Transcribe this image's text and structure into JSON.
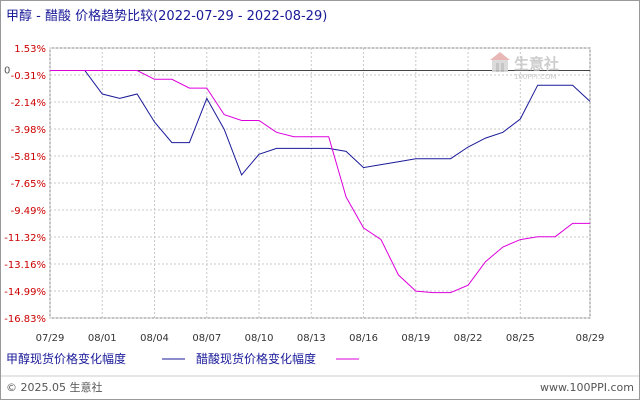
{
  "chart_data": {
    "type": "line",
    "title": "甲醇 - 醋酸 价格趋势比较(2022-07-29 - 2022-08-29)",
    "zero_label": "0",
    "ylim": [
      -16.83,
      1.53
    ],
    "yticks": [
      "1.53%",
      "-0.31%",
      "-2.14%",
      "-3.98%",
      "-5.81%",
      "-7.65%",
      "-9.49%",
      "-11.32%",
      "-13.16%",
      "-14.99%",
      "-16.83%"
    ],
    "ytick_values": [
      1.53,
      -0.31,
      -2.14,
      -3.98,
      -5.81,
      -7.65,
      -9.49,
      -11.32,
      -13.16,
      -14.99,
      -16.83
    ],
    "xlim": [
      "07/29",
      "08/29"
    ],
    "xticks": [
      "07/29",
      "08/01",
      "08/04",
      "08/07",
      "08/10",
      "08/13",
      "08/16",
      "08/19",
      "08/22",
      "08/25",
      "08/29"
    ],
    "grid": true,
    "series": [
      {
        "name": "甲醇现货价格变化幅度",
        "color": "#1a1a99",
        "x": [
          "07/29",
          "07/30",
          "07/31",
          "08/01",
          "08/02",
          "08/03",
          "08/04",
          "08/05",
          "08/06",
          "08/07",
          "08/08",
          "08/09",
          "08/10",
          "08/11",
          "08/12",
          "08/13",
          "08/14",
          "08/15",
          "08/16",
          "08/17",
          "08/18",
          "08/19",
          "08/20",
          "08/21",
          "08/22",
          "08/23",
          "08/24",
          "08/25",
          "08/26",
          "08/27",
          "08/28",
          "08/29"
        ],
        "values": [
          0,
          0,
          0,
          -1.6,
          -1.9,
          -1.6,
          -3.5,
          -4.9,
          -4.9,
          -1.9,
          -4.0,
          -7.1,
          -5.7,
          -5.3,
          -5.3,
          -5.3,
          -5.3,
          -5.5,
          -6.6,
          -6.4,
          -6.2,
          -6.0,
          -6.0,
          -6.0,
          -5.2,
          -4.6,
          -4.2,
          -3.3,
          -1.0,
          -1.0,
          -1.0,
          -2.1
        ]
      },
      {
        "name": "醋酸现货价格变化幅度",
        "color": "#dd00dd",
        "x": [
          "07/29",
          "07/30",
          "07/31",
          "08/01",
          "08/02",
          "08/03",
          "08/04",
          "08/05",
          "08/06",
          "08/07",
          "08/08",
          "08/09",
          "08/10",
          "08/11",
          "08/12",
          "08/13",
          "08/14",
          "08/15",
          "08/16",
          "08/17",
          "08/18",
          "08/19",
          "08/20",
          "08/21",
          "08/22",
          "08/23",
          "08/24",
          "08/25",
          "08/26",
          "08/27",
          "08/28",
          "08/29"
        ],
        "values": [
          0,
          0,
          0,
          0,
          0,
          0,
          -0.6,
          -0.6,
          -1.2,
          -1.2,
          -3.0,
          -3.4,
          -3.4,
          -4.2,
          -4.5,
          -4.5,
          -4.5,
          -8.6,
          -10.7,
          -11.5,
          -13.9,
          -15.0,
          -15.1,
          -15.1,
          -14.6,
          -13.0,
          -12.0,
          -11.5,
          -11.3,
          -11.3,
          -10.4,
          -10.4
        ]
      }
    ],
    "legend_position": "bottom-left"
  },
  "watermark": {
    "brand": "生意社",
    "url": "100PPI.COM"
  },
  "footer": {
    "copyright": "© 2025.05 生意社",
    "website": "www.100PPI.com"
  }
}
